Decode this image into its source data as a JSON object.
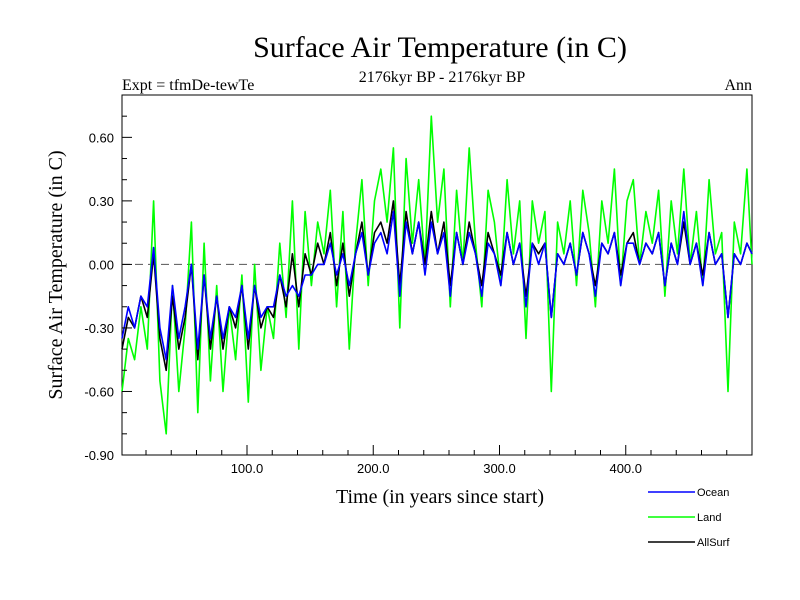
{
  "chart_data": {
    "type": "line",
    "title": "Surface Air Temperature (in C)",
    "subtitle_left": "Expt = tfmDe-tewTe",
    "subtitle_center": "2176kyr BP - 2176kyr BP",
    "subtitle_right": "Ann",
    "xlabel": "Time (in years since start)",
    "ylabel": "Surface Air Temperature (in C)",
    "xlim": [
      1,
      500
    ],
    "ylim": [
      -0.9,
      0.8
    ],
    "xticks": [
      100,
      200,
      300,
      400
    ],
    "xtick_labels": [
      "100.0",
      "200.0",
      "300.0",
      "400.0"
    ],
    "yticks": [
      -0.9,
      -0.6,
      -0.3,
      0.0,
      0.3,
      0.6
    ],
    "ytick_labels": [
      "-0.90",
      "-0.60",
      "-0.30",
      "0.00",
      "0.30",
      "0.60"
    ],
    "reference_line": 0.0,
    "legend_position": "bottom-right",
    "series": [
      {
        "name": "Land",
        "color": "#00ff00",
        "x": [
          1,
          6,
          11,
          16,
          21,
          26,
          31,
          36,
          41,
          46,
          51,
          56,
          61,
          66,
          71,
          76,
          81,
          86,
          91,
          96,
          101,
          106,
          111,
          116,
          121,
          126,
          131,
          136,
          141,
          146,
          151,
          156,
          161,
          166,
          171,
          176,
          181,
          186,
          191,
          196,
          201,
          206,
          211,
          216,
          221,
          226,
          231,
          236,
          241,
          246,
          251,
          256,
          261,
          266,
          271,
          276,
          281,
          286,
          291,
          296,
          301,
          306,
          311,
          316,
          321,
          326,
          331,
          336,
          341,
          346,
          351,
          356,
          361,
          366,
          371,
          376,
          381,
          386,
          391,
          396,
          401,
          406,
          411,
          416,
          421,
          426,
          431,
          436,
          441,
          446,
          451,
          456,
          461,
          466,
          471,
          476,
          481,
          486,
          491,
          496,
          500
        ],
        "values": [
          -0.6,
          -0.35,
          -0.45,
          -0.2,
          -0.4,
          0.3,
          -0.55,
          -0.8,
          -0.1,
          -0.6,
          -0.3,
          0.2,
          -0.7,
          0.1,
          -0.55,
          -0.1,
          -0.6,
          -0.2,
          -0.45,
          -0.05,
          -0.65,
          0.0,
          -0.5,
          -0.2,
          -0.35,
          0.1,
          -0.25,
          0.3,
          -0.4,
          0.25,
          -0.1,
          0.2,
          0.05,
          0.35,
          -0.2,
          0.25,
          -0.4,
          0.1,
          0.4,
          -0.1,
          0.3,
          0.45,
          0.2,
          0.55,
          -0.3,
          0.5,
          0.1,
          0.4,
          0.0,
          0.7,
          0.2,
          0.45,
          -0.2,
          0.35,
          0.0,
          0.55,
          0.1,
          -0.2,
          0.35,
          0.2,
          -0.1,
          0.4,
          0.05,
          0.3,
          -0.35,
          0.3,
          0.1,
          0.25,
          -0.6,
          0.2,
          0.05,
          0.3,
          -0.1,
          0.35,
          0.15,
          -0.2,
          0.3,
          0.1,
          0.45,
          -0.1,
          0.3,
          0.4,
          0.0,
          0.25,
          0.1,
          0.35,
          -0.15,
          0.3,
          0.05,
          0.45,
          0.0,
          0.25,
          -0.1,
          0.4,
          0.05,
          0.15,
          -0.6,
          0.2,
          0.05,
          0.45,
          0.0
        ]
      },
      {
        "name": "AllSurf",
        "color": "#000000",
        "x": [
          1,
          6,
          11,
          16,
          21,
          26,
          31,
          36,
          41,
          46,
          51,
          56,
          61,
          66,
          71,
          76,
          81,
          86,
          91,
          96,
          101,
          106,
          111,
          116,
          121,
          126,
          131,
          136,
          141,
          146,
          151,
          156,
          161,
          166,
          171,
          176,
          181,
          186,
          191,
          196,
          201,
          206,
          211,
          216,
          221,
          226,
          231,
          236,
          241,
          246,
          251,
          256,
          261,
          266,
          271,
          276,
          281,
          286,
          291,
          296,
          301,
          306,
          311,
          316,
          321,
          326,
          331,
          336,
          341,
          346,
          351,
          356,
          361,
          366,
          371,
          376,
          381,
          386,
          391,
          396,
          401,
          406,
          411,
          416,
          421,
          426,
          431,
          436,
          441,
          446,
          451,
          456,
          461,
          466,
          471,
          476,
          481,
          486,
          491,
          496,
          500
        ],
        "values": [
          -0.4,
          -0.25,
          -0.3,
          -0.15,
          -0.25,
          0.05,
          -0.35,
          -0.5,
          -0.15,
          -0.4,
          -0.25,
          0.0,
          -0.45,
          -0.05,
          -0.4,
          -0.15,
          -0.4,
          -0.2,
          -0.3,
          -0.1,
          -0.4,
          -0.1,
          -0.3,
          -0.2,
          -0.25,
          -0.05,
          -0.2,
          0.05,
          -0.2,
          0.05,
          -0.05,
          0.1,
          0.0,
          0.15,
          -0.1,
          0.1,
          -0.15,
          0.05,
          0.2,
          -0.05,
          0.15,
          0.2,
          0.1,
          0.3,
          -0.1,
          0.25,
          0.05,
          0.2,
          0.0,
          0.25,
          0.05,
          0.2,
          -0.1,
          0.15,
          0.0,
          0.2,
          0.05,
          -0.1,
          0.15,
          0.05,
          -0.05,
          0.15,
          0.0,
          0.1,
          -0.15,
          0.1,
          0.05,
          0.1,
          -0.25,
          0.05,
          0.0,
          0.1,
          -0.05,
          0.15,
          0.05,
          -0.1,
          0.1,
          0.05,
          0.15,
          -0.05,
          0.1,
          0.15,
          0.0,
          0.1,
          0.05,
          0.15,
          -0.1,
          0.1,
          0.0,
          0.2,
          0.0,
          0.1,
          -0.05,
          0.15,
          0.0,
          0.05,
          -0.25,
          0.05,
          0.0,
          0.1,
          0.05
        ]
      },
      {
        "name": "Ocean",
        "color": "#0000ff",
        "x": [
          1,
          6,
          11,
          16,
          21,
          26,
          31,
          36,
          41,
          46,
          51,
          56,
          61,
          66,
          71,
          76,
          81,
          86,
          91,
          96,
          101,
          106,
          111,
          116,
          121,
          126,
          131,
          136,
          141,
          146,
          151,
          156,
          161,
          166,
          171,
          176,
          181,
          186,
          191,
          196,
          201,
          206,
          211,
          216,
          221,
          226,
          231,
          236,
          241,
          246,
          251,
          256,
          261,
          266,
          271,
          276,
          281,
          286,
          291,
          296,
          301,
          306,
          311,
          316,
          321,
          326,
          331,
          336,
          341,
          346,
          351,
          356,
          361,
          366,
          371,
          376,
          381,
          386,
          391,
          396,
          401,
          406,
          411,
          416,
          421,
          426,
          431,
          436,
          441,
          446,
          451,
          456,
          461,
          466,
          471,
          476,
          481,
          486,
          491,
          496,
          500
        ],
        "values": [
          -0.35,
          -0.2,
          -0.3,
          -0.15,
          -0.2,
          0.08,
          -0.3,
          -0.45,
          -0.1,
          -0.35,
          -0.2,
          0.0,
          -0.4,
          -0.05,
          -0.35,
          -0.15,
          -0.35,
          -0.2,
          -0.25,
          -0.1,
          -0.35,
          -0.1,
          -0.25,
          -0.2,
          -0.2,
          -0.05,
          -0.15,
          -0.1,
          -0.15,
          -0.05,
          -0.05,
          0.0,
          0.0,
          0.1,
          -0.05,
          0.05,
          -0.1,
          0.05,
          0.15,
          -0.05,
          0.1,
          0.15,
          0.05,
          0.25,
          -0.15,
          0.2,
          0.05,
          0.2,
          -0.05,
          0.2,
          0.05,
          0.15,
          -0.15,
          0.15,
          0.0,
          0.15,
          0.05,
          -0.15,
          0.1,
          0.05,
          -0.1,
          0.15,
          0.0,
          0.1,
          -0.2,
          0.1,
          0.0,
          0.1,
          -0.25,
          0.05,
          0.0,
          0.1,
          -0.05,
          0.15,
          0.05,
          -0.15,
          0.1,
          0.05,
          0.15,
          -0.1,
          0.1,
          0.1,
          0.0,
          0.1,
          0.05,
          0.15,
          -0.1,
          0.1,
          0.0,
          0.25,
          0.0,
          0.1,
          -0.1,
          0.15,
          0.0,
          0.05,
          -0.25,
          0.05,
          0.0,
          0.1,
          0.05
        ]
      }
    ],
    "legend": [
      {
        "name": "Ocean",
        "color": "#0000ff"
      },
      {
        "name": "Land",
        "color": "#00ff00"
      },
      {
        "name": "AllSurf",
        "color": "#000000"
      }
    ]
  }
}
